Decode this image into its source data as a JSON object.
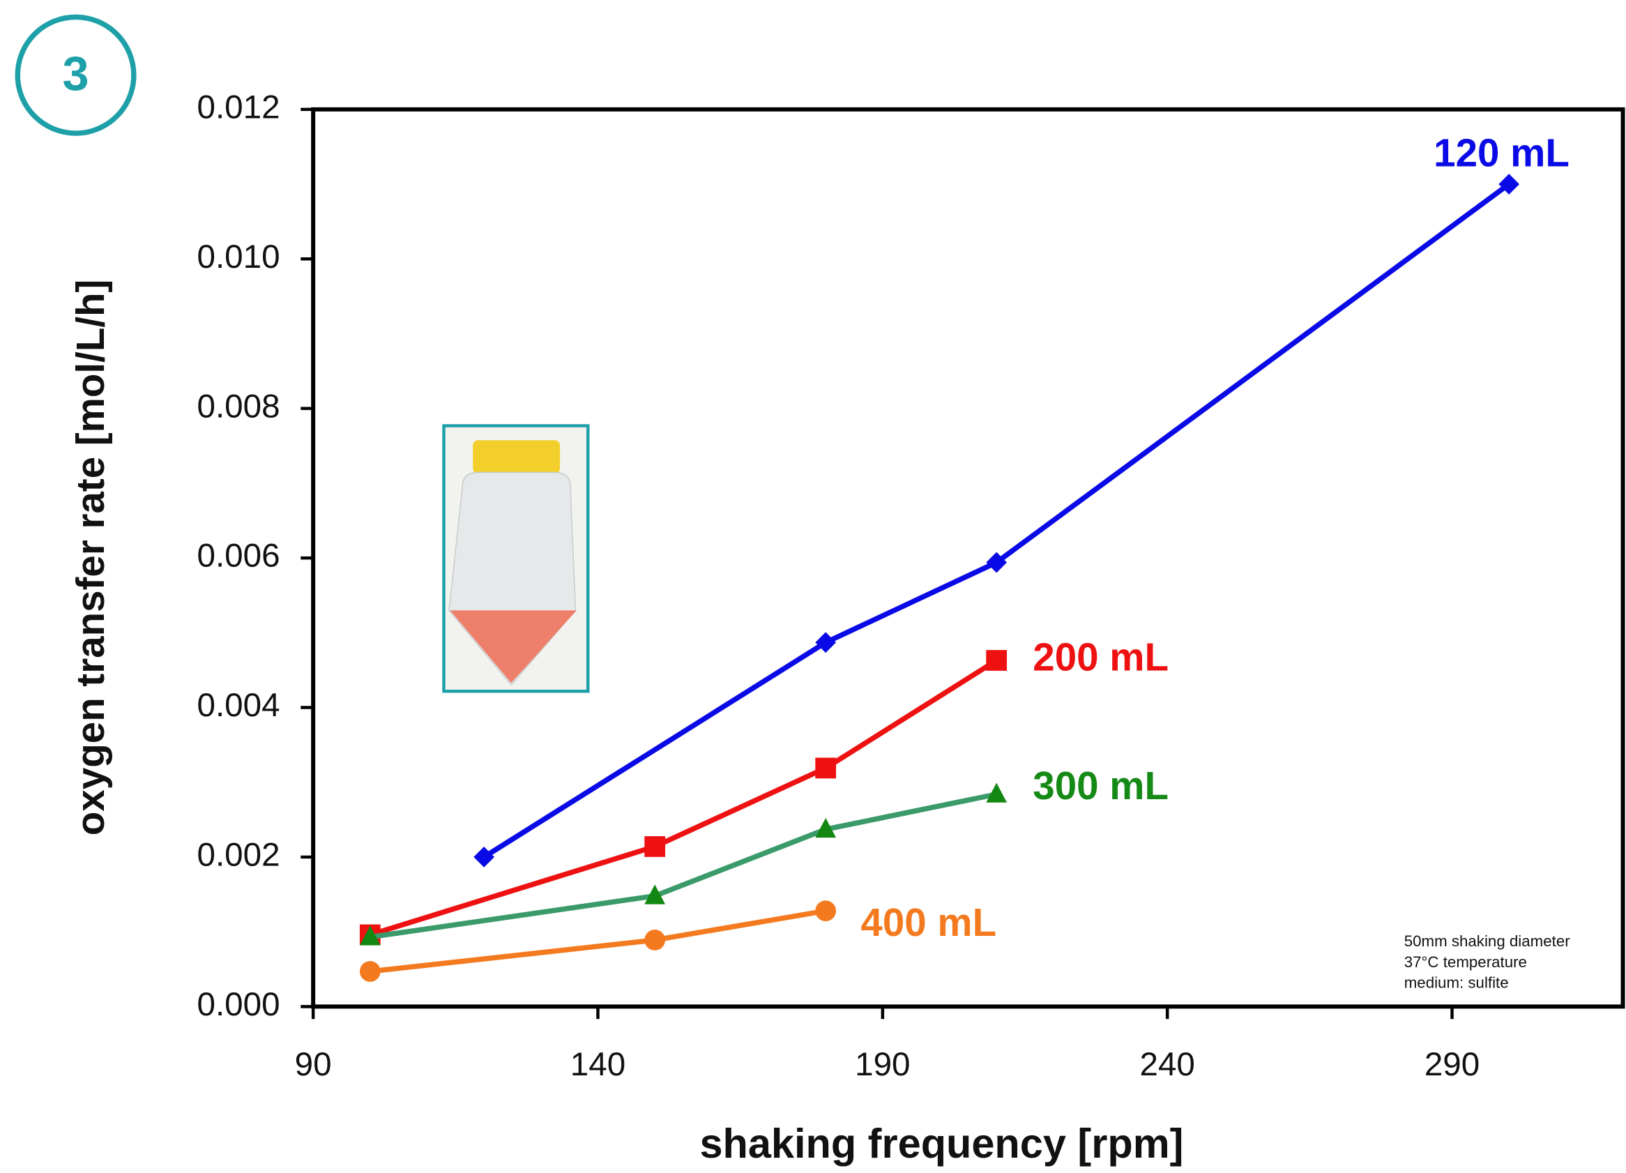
{
  "chart_data": {
    "type": "line",
    "panel_label": "3",
    "x_label": "shaking frequency  [rpm]",
    "y_label": "oxygen transfer rate  [mol/L/h]",
    "xlim": [
      90,
      320
    ],
    "xticks": [
      90,
      140,
      190,
      240,
      290
    ],
    "ylim": [
      0,
      0.012
    ],
    "yticks": [
      {
        "value": 0,
        "label": "0.000"
      },
      {
        "value": 0.002,
        "label": "0.002"
      },
      {
        "value": 0.004,
        "label": "0.004"
      },
      {
        "value": 0.006,
        "label": "0.006"
      },
      {
        "value": 0.008,
        "label": "0.008"
      },
      {
        "value": 0.01,
        "label": "0.010"
      },
      {
        "value": 0.012,
        "label": "0.012"
      }
    ],
    "series": [
      {
        "name": "120 mL",
        "color": "#0a0ae6",
        "label_color": "#0a0ae6",
        "marker": "diamond",
        "x": [
          120,
          180,
          210,
          300
        ],
        "values": [
          0.002,
          0.00487,
          0.00594,
          0.011
        ]
      },
      {
        "name": "200 mL",
        "color": "#ee1111",
        "label_color": "#ee1111",
        "marker": "square",
        "x": [
          100,
          150,
          180,
          210
        ],
        "values": [
          0.00096,
          0.00214,
          0.00319,
          0.00463
        ]
      },
      {
        "name": "300 mL",
        "color": "#3a9a6a",
        "label_color": "#168a16",
        "marker_color": "#128812",
        "marker": "triangle",
        "x": [
          100,
          150,
          180,
          210
        ],
        "values": [
          0.00093,
          0.00148,
          0.00237,
          0.00284
        ]
      },
      {
        "name": "400 mL",
        "color": "#f47a20",
        "label_color": "#f47a20",
        "marker": "circle",
        "x": [
          100,
          150,
          180
        ],
        "values": [
          0.00047,
          0.00089,
          0.00128
        ]
      }
    ],
    "notes": [
      "50mm shaking diameter",
      "37°C temperature",
      "medium: sulfite"
    ]
  }
}
